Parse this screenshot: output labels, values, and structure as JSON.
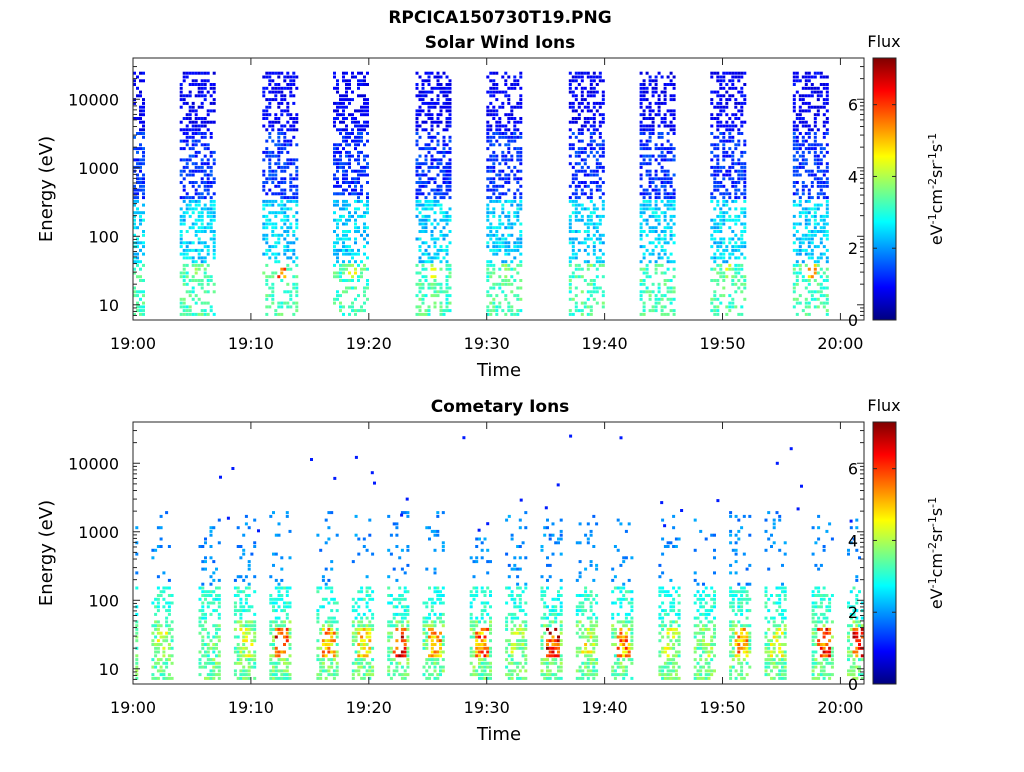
{
  "figure_title": "RPCICA150730T19.PNG",
  "colorscale": [
    "#00007f",
    "#0000ff",
    "#007fff",
    "#00ffff",
    "#7fff7f",
    "#ffff00",
    "#ff7f00",
    "#ff0000",
    "#7f0000"
  ],
  "chart_data": [
    {
      "type": "heatmap",
      "title": "Solar Wind Ions",
      "xlabel": "Time",
      "ylabel": "Energy (eV)",
      "x_ticks": [
        "19:00",
        "19:10",
        "19:20",
        "19:30",
        "19:40",
        "19:50",
        "20:00"
      ],
      "y_ticks": [
        "10",
        "100",
        "1000",
        "10000"
      ],
      "yscale": "log",
      "ylim": [
        6,
        40000
      ],
      "xlim": [
        "19:00",
        "20:02"
      ],
      "colorbar": {
        "title": "Flux",
        "label": "eV-1cm-2sr-1s-1",
        "ticks": [
          "0",
          "2",
          "4",
          "6"
        ],
        "range": [
          0,
          7.3
        ]
      },
      "bursts": [
        {
          "time": "19:00",
          "peak_flux": 4.2
        },
        {
          "time": "19:06",
          "peak_flux": 4.0
        },
        {
          "time": "19:13",
          "peak_flux": 6.2
        },
        {
          "time": "19:19",
          "peak_flux": 4.8
        },
        {
          "time": "19:26",
          "peak_flux": 5.2
        },
        {
          "time": "19:32",
          "peak_flux": 4.0
        },
        {
          "time": "19:39",
          "peak_flux": 4.5
        },
        {
          "time": "19:45",
          "peak_flux": 3.8
        },
        {
          "time": "19:51",
          "peak_flux": 4.6
        },
        {
          "time": "19:58",
          "peak_flux": 5.6
        }
      ]
    },
    {
      "type": "heatmap",
      "title": "Cometary Ions",
      "xlabel": "Time",
      "ylabel": "Energy (eV)",
      "x_ticks": [
        "19:00",
        "19:10",
        "19:20",
        "19:30",
        "19:40",
        "19:50",
        "20:00"
      ],
      "y_ticks": [
        "10",
        "100",
        "1000",
        "10000"
      ],
      "yscale": "log",
      "ylim": [
        6,
        40000
      ],
      "xlim": [
        "19:00",
        "20:02"
      ],
      "colorbar": {
        "title": "Flux",
        "label": "eV-1cm-2sr-1s-1",
        "ticks": [
          "0",
          "2",
          "4",
          "6"
        ],
        "range": [
          0,
          7.3
        ]
      },
      "bursts": [
        {
          "time": "19:00",
          "peak_flux": 4.5
        },
        {
          "time": "19:03",
          "peak_flux": 4.8
        },
        {
          "time": "19:07",
          "peak_flux": 4.0
        },
        {
          "time": "19:10",
          "peak_flux": 4.8
        },
        {
          "time": "19:13",
          "peak_flux": 7.0
        },
        {
          "time": "19:17",
          "peak_flux": 6.0
        },
        {
          "time": "19:20",
          "peak_flux": 5.5
        },
        {
          "time": "19:23",
          "peak_flux": 7.2
        },
        {
          "time": "19:26",
          "peak_flux": 6.0
        },
        {
          "time": "19:30",
          "peak_flux": 6.5
        },
        {
          "time": "19:33",
          "peak_flux": 4.5
        },
        {
          "time": "19:36",
          "peak_flux": 7.3
        },
        {
          "time": "19:39",
          "peak_flux": 5.0
        },
        {
          "time": "19:42",
          "peak_flux": 6.2
        },
        {
          "time": "19:46",
          "peak_flux": 4.8
        },
        {
          "time": "19:49",
          "peak_flux": 4.5
        },
        {
          "time": "19:52",
          "peak_flux": 6.0
        },
        {
          "time": "19:55",
          "peak_flux": 5.0
        },
        {
          "time": "19:59",
          "peak_flux": 7.0
        },
        {
          "time": "20:02",
          "peak_flux": 7.2
        }
      ]
    }
  ]
}
